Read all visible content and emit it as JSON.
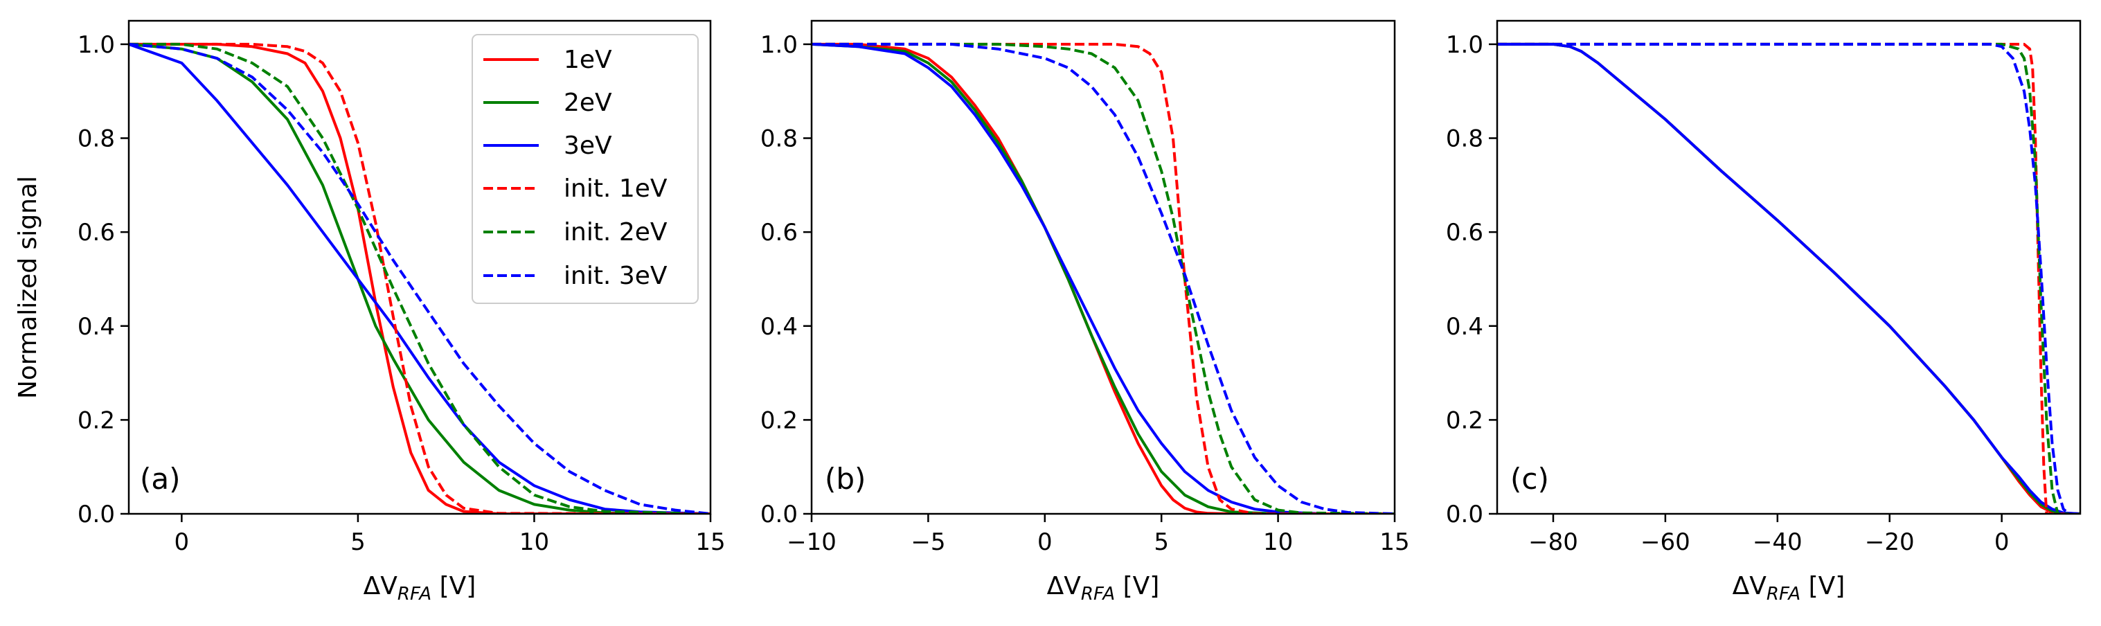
{
  "figure": {
    "ylabel": "Normalized signal",
    "legend": [
      {
        "label": "1eV",
        "color": "#ff0000",
        "dash": "solid"
      },
      {
        "label": "2eV",
        "color": "#008000",
        "dash": "solid"
      },
      {
        "label": "3eV",
        "color": "#0000ff",
        "dash": "solid"
      },
      {
        "label": "init. 1eV",
        "color": "#ff0000",
        "dash": "dashed"
      },
      {
        "label": "init. 2eV",
        "color": "#008000",
        "dash": "dashed"
      },
      {
        "label": "init. 3eV",
        "color": "#0000ff",
        "dash": "dashed"
      }
    ],
    "legend_placement": "top-right of panel (a)"
  },
  "chart_data": [
    {
      "type": "line",
      "panel": "(a)",
      "xlabel": "ΔV_RFA [V]",
      "ylabel": "Normalized signal",
      "xlim": [
        -1.5,
        15
      ],
      "ylim": [
        0,
        1.05
      ],
      "xticks": [
        0,
        5,
        10,
        15
      ],
      "xtick_labels": [
        "0",
        "5",
        "10",
        "15"
      ],
      "yticks": [
        0,
        0.2,
        0.4,
        0.6,
        0.8,
        1.0
      ],
      "ytick_labels": [
        "0.0",
        "0.2",
        "0.4",
        "0.6",
        "0.8",
        "1.0"
      ],
      "series": [
        {
          "name": "1eV",
          "color": "#ff0000",
          "dash": "solid",
          "x": [
            -1.5,
            0,
            1,
            2,
            3,
            3.5,
            4,
            4.5,
            5,
            5.5,
            6,
            6.5,
            7,
            7.5,
            8,
            9,
            10,
            15
          ],
          "y": [
            1.0,
            1.0,
            1.0,
            0.995,
            0.98,
            0.96,
            0.9,
            0.8,
            0.65,
            0.45,
            0.27,
            0.13,
            0.05,
            0.02,
            0.005,
            0.0,
            0.0,
            0.0
          ]
        },
        {
          "name": "2eV",
          "color": "#008000",
          "dash": "solid",
          "x": [
            -1.5,
            0,
            1,
            2,
            3,
            4,
            5,
            5.5,
            6,
            7,
            8,
            9,
            10,
            11,
            12,
            15
          ],
          "y": [
            1.0,
            0.99,
            0.97,
            0.92,
            0.84,
            0.7,
            0.5,
            0.4,
            0.33,
            0.2,
            0.11,
            0.05,
            0.02,
            0.008,
            0.002,
            0.0
          ]
        },
        {
          "name": "3eV",
          "color": "#0000ff",
          "dash": "solid",
          "x": [
            -1.5,
            0,
            1,
            2,
            3,
            4,
            5,
            6,
            7,
            8,
            9,
            10,
            11,
            12,
            13,
            15
          ],
          "y": [
            1.0,
            0.96,
            0.88,
            0.79,
            0.7,
            0.6,
            0.5,
            0.4,
            0.29,
            0.19,
            0.11,
            0.06,
            0.03,
            0.01,
            0.004,
            0.0
          ]
        },
        {
          "name": "init. 1eV",
          "color": "#ff0000",
          "dash": "dashed",
          "x": [
            -1.5,
            0,
            2,
            3,
            3.5,
            4,
            4.5,
            5,
            5.5,
            6,
            6.5,
            7,
            7.5,
            8,
            9,
            15
          ],
          "y": [
            1.0,
            1.0,
            1.0,
            0.995,
            0.985,
            0.96,
            0.9,
            0.79,
            0.62,
            0.42,
            0.23,
            0.1,
            0.04,
            0.012,
            0.001,
            0.0
          ]
        },
        {
          "name": "init. 2eV",
          "color": "#008000",
          "dash": "dashed",
          "x": [
            -1.5,
            0,
            1,
            2,
            3,
            4,
            5,
            6,
            7,
            8,
            9,
            10,
            11,
            12,
            15
          ],
          "y": [
            1.0,
            1.0,
            0.99,
            0.96,
            0.91,
            0.8,
            0.65,
            0.48,
            0.32,
            0.19,
            0.1,
            0.04,
            0.015,
            0.005,
            0.0
          ]
        },
        {
          "name": "init. 3eV",
          "color": "#0000ff",
          "dash": "dashed",
          "x": [
            -1.5,
            0,
            1,
            2,
            3,
            4,
            5,
            6,
            7,
            8,
            9,
            10,
            11,
            12,
            13,
            14,
            15
          ],
          "y": [
            1.0,
            0.99,
            0.97,
            0.93,
            0.86,
            0.77,
            0.66,
            0.54,
            0.43,
            0.32,
            0.23,
            0.15,
            0.09,
            0.05,
            0.02,
            0.008,
            0.0
          ]
        }
      ]
    },
    {
      "type": "line",
      "panel": "(b)",
      "xlabel": "ΔV_RFA [V]",
      "ylabel": "",
      "xlim": [
        -10,
        15
      ],
      "ylim": [
        0,
        1.05
      ],
      "xticks": [
        -10,
        -5,
        0,
        5,
        10,
        15
      ],
      "xtick_labels": [
        "−10",
        "−5",
        "0",
        "5",
        "10",
        "15"
      ],
      "yticks": [
        0,
        0.2,
        0.4,
        0.6,
        0.8,
        1.0
      ],
      "ytick_labels": [
        "0.0",
        "0.2",
        "0.4",
        "0.6",
        "0.8",
        "1.0"
      ],
      "series": [
        {
          "name": "1eV",
          "color": "#ff0000",
          "dash": "solid",
          "x": [
            -10,
            -8,
            -6,
            -5,
            -4,
            -3,
            -2,
            -1,
            0,
            1,
            2,
            3,
            4,
            5,
            5.5,
            6,
            6.5,
            7,
            8,
            10,
            15
          ],
          "y": [
            1.0,
            1.0,
            0.99,
            0.97,
            0.93,
            0.87,
            0.8,
            0.71,
            0.61,
            0.5,
            0.38,
            0.26,
            0.15,
            0.06,
            0.03,
            0.012,
            0.004,
            0.001,
            0.0,
            0.0,
            0.0
          ]
        },
        {
          "name": "2eV",
          "color": "#008000",
          "dash": "solid",
          "x": [
            -10,
            -8,
            -6,
            -5,
            -4,
            -3,
            -2,
            -1,
            0,
            1,
            2,
            3,
            4,
            5,
            6,
            7,
            8,
            10,
            15
          ],
          "y": [
            1.0,
            0.995,
            0.985,
            0.96,
            0.92,
            0.86,
            0.79,
            0.71,
            0.61,
            0.5,
            0.38,
            0.27,
            0.17,
            0.09,
            0.04,
            0.015,
            0.004,
            0.0,
            0.0
          ]
        },
        {
          "name": "3eV",
          "color": "#0000ff",
          "dash": "solid",
          "x": [
            -10,
            -8,
            -6,
            -5,
            -4,
            -3,
            -2,
            -1,
            0,
            1,
            2,
            3,
            4,
            5,
            6,
            7,
            8,
            9,
            10,
            12,
            15
          ],
          "y": [
            1.0,
            0.995,
            0.98,
            0.95,
            0.91,
            0.85,
            0.78,
            0.7,
            0.61,
            0.51,
            0.41,
            0.31,
            0.22,
            0.15,
            0.09,
            0.05,
            0.025,
            0.01,
            0.004,
            0.0,
            0.0
          ]
        },
        {
          "name": "init. 1eV",
          "color": "#ff0000",
          "dash": "dashed",
          "x": [
            -10,
            0,
            2,
            3,
            4,
            4.5,
            5,
            5.5,
            6,
            6.5,
            7,
            7.5,
            8,
            9,
            15
          ],
          "y": [
            1.0,
            1.0,
            1.0,
            1.0,
            0.995,
            0.98,
            0.94,
            0.8,
            0.5,
            0.25,
            0.1,
            0.03,
            0.01,
            0.0,
            0.0
          ]
        },
        {
          "name": "init. 2eV",
          "color": "#008000",
          "dash": "dashed",
          "x": [
            -10,
            -2,
            0,
            1,
            2,
            3,
            4,
            5,
            5.5,
            6,
            6.5,
            7,
            7.5,
            8,
            9,
            10,
            11,
            15
          ],
          "y": [
            1.0,
            1.0,
            0.995,
            0.99,
            0.98,
            0.95,
            0.88,
            0.73,
            0.63,
            0.5,
            0.38,
            0.26,
            0.17,
            0.1,
            0.03,
            0.008,
            0.002,
            0.0
          ]
        },
        {
          "name": "init. 3eV",
          "color": "#0000ff",
          "dash": "dashed",
          "x": [
            -10,
            -4,
            -2,
            0,
            1,
            2,
            3,
            4,
            5,
            6,
            7,
            8,
            9,
            10,
            11,
            12,
            13,
            15
          ],
          "y": [
            1.0,
            1.0,
            0.99,
            0.97,
            0.95,
            0.91,
            0.85,
            0.76,
            0.64,
            0.51,
            0.36,
            0.22,
            0.12,
            0.06,
            0.025,
            0.01,
            0.003,
            0.0
          ]
        }
      ]
    },
    {
      "type": "line",
      "panel": "(c)",
      "xlabel": "ΔV_RFA [V]",
      "ylabel": "",
      "xlim": [
        -90,
        14
      ],
      "ylim": [
        0,
        1.05
      ],
      "xticks": [
        -80,
        -60,
        -40,
        -20,
        0
      ],
      "xtick_labels": [
        "−80",
        "−60",
        "−40",
        "−20",
        "0"
      ],
      "yticks": [
        0,
        0.2,
        0.4,
        0.6,
        0.8,
        1.0
      ],
      "ytick_labels": [
        "0.0",
        "0.2",
        "0.4",
        "0.6",
        "0.8",
        "1.0"
      ],
      "series": [
        {
          "name": "1eV",
          "color": "#ff0000",
          "dash": "solid",
          "x": [
            -90,
            -80,
            -77,
            -75,
            -72,
            -70,
            -60,
            -50,
            -40,
            -30,
            -20,
            -10,
            -5,
            0,
            3,
            5,
            7,
            9,
            14
          ],
          "y": [
            1.0,
            1.0,
            0.995,
            0.985,
            0.96,
            0.94,
            0.84,
            0.73,
            0.625,
            0.515,
            0.4,
            0.27,
            0.2,
            0.12,
            0.07,
            0.04,
            0.015,
            0.003,
            0.0
          ]
        },
        {
          "name": "2eV",
          "color": "#008000",
          "dash": "solid",
          "x": [
            -90,
            -80,
            -77,
            -75,
            -72,
            -70,
            -60,
            -50,
            -40,
            -30,
            -20,
            -10,
            -5,
            0,
            3,
            5,
            7,
            9,
            11,
            14
          ],
          "y": [
            1.0,
            1.0,
            0.995,
            0.985,
            0.96,
            0.94,
            0.84,
            0.73,
            0.625,
            0.515,
            0.4,
            0.27,
            0.2,
            0.12,
            0.075,
            0.045,
            0.02,
            0.006,
            0.001,
            0.0
          ]
        },
        {
          "name": "3eV",
          "color": "#0000ff",
          "dash": "solid",
          "x": [
            -90,
            -80,
            -77,
            -75,
            -72,
            -70,
            -60,
            -50,
            -40,
            -30,
            -20,
            -10,
            -5,
            0,
            3,
            5,
            7,
            9,
            11,
            14
          ],
          "y": [
            1.0,
            1.0,
            0.995,
            0.985,
            0.96,
            0.94,
            0.84,
            0.73,
            0.625,
            0.515,
            0.4,
            0.27,
            0.2,
            0.12,
            0.08,
            0.05,
            0.025,
            0.01,
            0.002,
            0.0
          ]
        },
        {
          "name": "init. 1eV",
          "color": "#ff0000",
          "dash": "dashed",
          "x": [
            -90,
            0,
            4,
            5,
            5.5,
            6,
            6.5,
            7,
            7.5,
            8,
            14
          ],
          "y": [
            1.0,
            1.0,
            1.0,
            0.99,
            0.95,
            0.8,
            0.55,
            0.3,
            0.1,
            0.0,
            0.0
          ]
        },
        {
          "name": "init. 2eV",
          "color": "#008000",
          "dash": "dashed",
          "x": [
            -90,
            0,
            3,
            4,
            5,
            6,
            6.5,
            7,
            8,
            9,
            10,
            14
          ],
          "y": [
            1.0,
            1.0,
            0.99,
            0.97,
            0.9,
            0.75,
            0.6,
            0.45,
            0.2,
            0.05,
            0.0,
            0.0
          ]
        },
        {
          "name": "init. 3eV",
          "color": "#0000ff",
          "dash": "dashed",
          "x": [
            -90,
            -2,
            0,
            2,
            4,
            5,
            6,
            7,
            8,
            9,
            10,
            11,
            12,
            14
          ],
          "y": [
            1.0,
            1.0,
            0.995,
            0.97,
            0.9,
            0.82,
            0.7,
            0.52,
            0.32,
            0.15,
            0.05,
            0.01,
            0.0,
            0.0
          ]
        }
      ]
    }
  ]
}
